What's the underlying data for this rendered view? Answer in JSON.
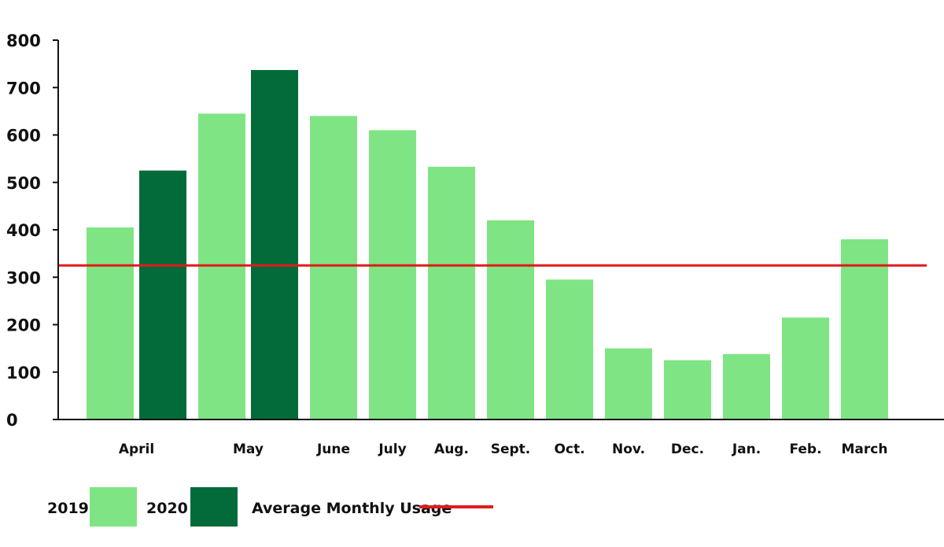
{
  "chart_data": {
    "type": "bar",
    "title": "",
    "xlabel": "",
    "ylabel": "",
    "ylim": [
      0,
      800
    ],
    "yticks": [
      "0",
      "100",
      "200",
      "300",
      "400",
      "500",
      "600",
      "700",
      "800"
    ],
    "grid": false,
    "categories": [
      "April",
      "May",
      "June",
      "July",
      "Aug.",
      "Sept.",
      "Oct.",
      "Nov.",
      "Dec.",
      "Jan.",
      "Feb.",
      "March"
    ],
    "series": [
      {
        "name": "2019",
        "color": "#7fe584",
        "values": [
          405,
          645,
          640,
          610,
          533,
          420,
          295,
          150,
          125,
          138,
          215,
          380
        ]
      },
      {
        "name": "2020",
        "color": "#036b3a",
        "values": [
          525,
          737,
          null,
          null,
          null,
          null,
          null,
          null,
          null,
          null,
          null,
          null
        ]
      }
    ],
    "reference_line": {
      "name": "Average Monthly Usage",
      "value": 325,
      "color": "#e01b1b"
    },
    "legend_position": "bottom-left"
  }
}
